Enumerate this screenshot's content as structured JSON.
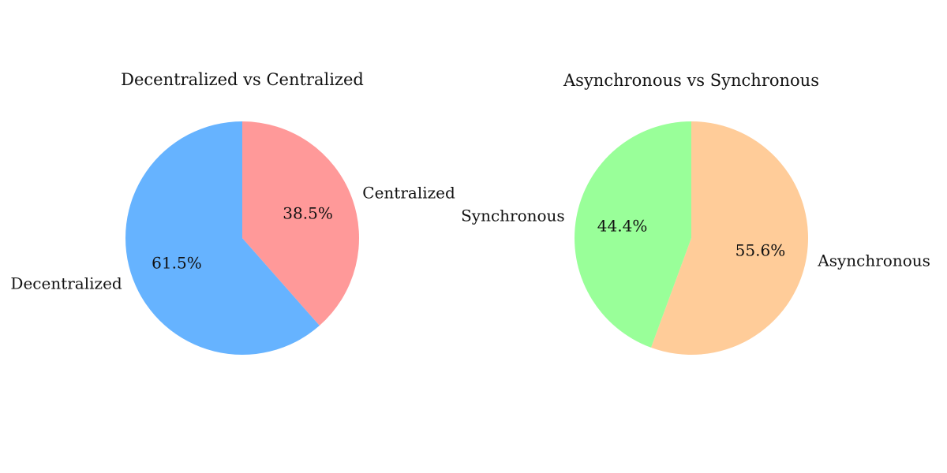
{
  "chart_data": [
    {
      "type": "pie",
      "title": "Decentralized vs Centralized",
      "start_angle_deg": 90,
      "direction": "clockwise",
      "slices": [
        {
          "label": "Centralized",
          "value": 38.5,
          "pct_text": "38.5%",
          "color": "#ff9999"
        },
        {
          "label": "Decentralized",
          "value": 61.5,
          "pct_text": "61.5%",
          "color": "#66b3ff"
        }
      ]
    },
    {
      "type": "pie",
      "title": "Asynchronous vs Synchronous",
      "start_angle_deg": 90,
      "direction": "clockwise",
      "slices": [
        {
          "label": "Asynchronous",
          "value": 55.6,
          "pct_text": "55.6%",
          "color": "#ffcc99"
        },
        {
          "label": "Synchronous",
          "value": 44.4,
          "pct_text": "44.4%",
          "color": "#99ff99"
        }
      ]
    }
  ]
}
